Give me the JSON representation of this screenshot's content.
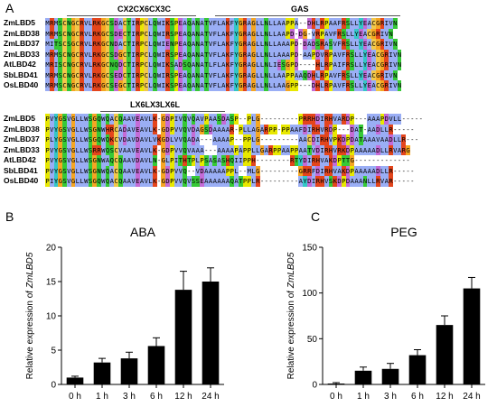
{
  "panel_labels": {
    "a": "A",
    "b": "B",
    "c": "C"
  },
  "alignment": {
    "motifs": {
      "zinc": "CX2CX6CX3C",
      "gas": "GAS",
      "leucine": "LX6LX3LX6L"
    },
    "names": [
      "ZmLBD5",
      "ZmLBD38",
      "ZmLBD37",
      "ZmLBD33",
      "AtLBD42",
      "SbLBD41",
      "OsLBD40"
    ],
    "block1": [
      "MRMSCNGCRVLRKGCSDACTIRPCLQWIKSPEAQANATVFLAKFYGRAGLLNLLAAPPA--DHLRPAAFRSLLYEACGRIVN",
      "MRMSCNGCRVLRKGCSDECTIRPCLQWIRSPEAQANATVFLAKFYGRAGLLNLLAAPD-DG-VRPAVFRSLLYEACGRIVN",
      "MITSCSGCRVLRKGCNDACTIRPCLQWIENPEAQANATVFLAKFYGRAGLLNLLAAAPD-DADSRASVFRSLLYEACGRIVN",
      "MRMSCNGCRVLRKGCSDGCTIRPCLQWIRSPEAQANATVFLAKFYGRAGLLNLLAAAPD-AAPDVRPAVFRSLLYEACGRIVN",
      "MRISCNGCRVLRKGCNQDCTIRPCLQWIKSADSQANATLFLAKFYGRAGLLNLIESGPD----HLRPAIFRSLLYEACGRIVN",
      "MRMSCNGCRVLRKGCSEDCTIRPCLQWIRSPEAQANATVFLAKFYGRAGLLNLLAAPPAAQDHLRPAVFRSLLYEACGRIVN",
      "MRMSCNGCRVLRKGCSEGCTIRPCLQWIKSPEAQANATVFLAKFYGRAGLLNLLAAGPP---DHLRPAVFRSLLYEACGRIVN"
    ],
    "block2": [
      "PVYGSVGLLWSGQWQACQAAVEAVLK-GDPIVQVQAVPAASDASP--PLG---------PRRHDIRHVARDP---AAAPDVLL-----",
      "PVYGSVGLLWSGNWHRCADAVEAVLK-GDPVVQVDAGSDAAAAR-PLLAGARPP-PPAAFDIRHVRDP---DAT-AADLLR-----",
      "PLYGSVGLLWSGQWQKCVDAVDAVLVKGDLVVQADA---AAAAP--PPLG---------AACDIRHVPKDPDATAAAVAADLLR---",
      "PVYGSVGLLWSRRWQSCVAAVEAVLK-GDPVVQVAAA---AAAAPAPPLLGARPPAAPPAATVDIRHVRKDPAAAAADLLRVARG",
      "PVYGSVGLLWSGNWAQCQAAVDAVLN-GLPITHTPLPSASASHQIIPPH--------RTYDIRHVAKDPTTG-------------",
      "PVYGSVGLLWSGNWQACQAAVEAVLK-GDPVVQ--VDAAAAAPPL--MLG---------GRRFDIRHVAKDPAAAAADLLR-----",
      "PIYGSVGLLWSGQWQACQAAVEAVLK-GDPVVQVSSEAAAAAAQATPPLR---------AYDIRHVSKDPDAAANLLRVAR-----"
    ]
  },
  "colors": {
    "G": "#f5a623",
    "P": "#e8e800",
    "C": "#f2c84b",
    "R": "#e4451c",
    "K": "#e4451c",
    "H": "#e4451c",
    "D": "#c46bd6",
    "E": "#c46bd6",
    "N": "#36c936",
    "Q": "#36c936",
    "S": "#36c936",
    "T": "#36c936",
    "A": "#9aaef5",
    "V": "#9aaef5",
    "L": "#9aaef5",
    "I": "#9aaef5",
    "M": "#9aaef5",
    "F": "#9aaef5",
    "W": "#9aaef5",
    "Y": "#34c7c7",
    "bar": "#000000"
  },
  "chart_data": [
    {
      "type": "bar",
      "title": "ABA",
      "categories": [
        "0 h",
        "1 h",
        "3 h",
        "6 h",
        "12 h",
        "24 h"
      ],
      "values": [
        1.0,
        3.2,
        3.8,
        5.6,
        13.8,
        15.0
      ],
      "errors": [
        0.2,
        0.6,
        0.9,
        1.2,
        2.7,
        2.0
      ],
      "ylabel_prefix": "Relative expression of ",
      "ylabel_gene": "ZmLBD5",
      "ylim": [
        0,
        20
      ],
      "yticks": [
        "0",
        "5",
        "10",
        "15",
        "20"
      ],
      "grid": false
    },
    {
      "type": "bar",
      "title": "PEG",
      "categories": [
        "0 h",
        "1 h",
        "3 h",
        "6 h",
        "12 h",
        "24 h"
      ],
      "values": [
        1.0,
        15.0,
        17.0,
        32.0,
        65.0,
        105.0
      ],
      "errors": [
        1.0,
        4.0,
        6.0,
        6.0,
        10.0,
        12.0
      ],
      "ylabel_prefix": "Relative expression of ",
      "ylabel_gene": "ZmLBD5",
      "ylim": [
        0,
        150
      ],
      "yticks": [
        "0",
        "50",
        "100",
        "150"
      ],
      "grid": false
    }
  ]
}
